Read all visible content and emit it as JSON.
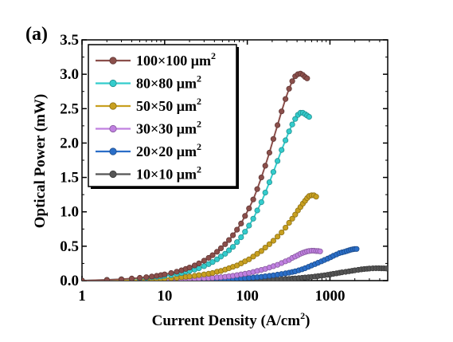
{
  "panel_label": "(a)",
  "chart_data": {
    "type": "scatter",
    "xlabel_main": "Current Density (A/cm",
    "xlabel_sup": "2",
    "xlabel_close": ")",
    "ylabel": "Optical Power (mW)",
    "x_scale": "log",
    "xlim": [
      1,
      5000
    ],
    "ylim": [
      0,
      3.5
    ],
    "x_ticks": [
      1,
      10,
      100,
      1000
    ],
    "x_tick_labels": [
      "1",
      "10",
      "100",
      "1000"
    ],
    "y_ticks": [
      0,
      0.5,
      1.0,
      1.5,
      2.0,
      2.5,
      3.0,
      3.5
    ],
    "y_tick_labels": [
      "0.0",
      "0.5",
      "1.0",
      "1.5",
      "2.0",
      "2.5",
      "3.0",
      "3.5"
    ],
    "grid": false,
    "legend_position": "top-left",
    "series": [
      {
        "name": "100×100 μm",
        "name_sup": "2",
        "color": "#8B4F4B",
        "x": [
          1,
          2,
          3,
          4,
          5,
          6,
          7,
          8,
          9,
          10,
          12,
          14,
          16,
          18,
          20,
          23,
          26,
          30,
          34,
          38,
          43,
          48,
          54,
          60,
          67,
          75,
          84,
          94,
          105,
          118,
          132,
          148,
          165,
          185,
          207,
          232,
          260,
          290,
          320,
          350,
          380,
          410,
          440,
          470,
          500,
          530
        ],
        "y": [
          0.0,
          0.01,
          0.02,
          0.03,
          0.04,
          0.05,
          0.06,
          0.07,
          0.08,
          0.09,
          0.11,
          0.13,
          0.15,
          0.17,
          0.19,
          0.22,
          0.25,
          0.29,
          0.33,
          0.37,
          0.42,
          0.47,
          0.53,
          0.59,
          0.66,
          0.74,
          0.83,
          0.94,
          1.05,
          1.18,
          1.33,
          1.5,
          1.67,
          1.86,
          2.06,
          2.26,
          2.46,
          2.64,
          2.79,
          2.9,
          2.97,
          3.0,
          3.01,
          2.99,
          2.96,
          2.94
        ]
      },
      {
        "name": "80×80 μm",
        "name_sup": "2",
        "color": "#33CCCC",
        "x": [
          1,
          2,
          3,
          4,
          5,
          6,
          7,
          8,
          9,
          10,
          12,
          14,
          16,
          18,
          20,
          23,
          26,
          30,
          34,
          38,
          43,
          48,
          54,
          60,
          67,
          75,
          84,
          94,
          105,
          118,
          132,
          148,
          165,
          185,
          207,
          232,
          260,
          290,
          320,
          350,
          380,
          410,
          440,
          470,
          500,
          530,
          560
        ],
        "y": [
          0.0,
          0.01,
          0.02,
          0.025,
          0.03,
          0.04,
          0.05,
          0.055,
          0.06,
          0.07,
          0.08,
          0.1,
          0.11,
          0.13,
          0.14,
          0.16,
          0.18,
          0.21,
          0.24,
          0.27,
          0.31,
          0.35,
          0.39,
          0.44,
          0.49,
          0.56,
          0.63,
          0.71,
          0.8,
          0.9,
          1.02,
          1.14,
          1.28,
          1.43,
          1.58,
          1.74,
          1.9,
          2.04,
          2.17,
          2.27,
          2.35,
          2.41,
          2.44,
          2.44,
          2.42,
          2.4,
          2.38
        ]
      },
      {
        "name": "50×50 μm",
        "name_sup": "2",
        "color": "#C8A020",
        "x": [
          1,
          2,
          3,
          4,
          5,
          6,
          7,
          8,
          9,
          10,
          12,
          14,
          16,
          18,
          20,
          23,
          26,
          30,
          34,
          38,
          43,
          48,
          54,
          60,
          67,
          75,
          84,
          94,
          105,
          118,
          132,
          148,
          165,
          185,
          207,
          232,
          260,
          290,
          320,
          350,
          380,
          410,
          440,
          470,
          500,
          530,
          560,
          600,
          640,
          680
        ],
        "y": [
          0.0,
          0.0,
          0.005,
          0.01,
          0.01,
          0.015,
          0.02,
          0.02,
          0.025,
          0.03,
          0.035,
          0.04,
          0.05,
          0.055,
          0.06,
          0.07,
          0.08,
          0.09,
          0.1,
          0.11,
          0.13,
          0.14,
          0.16,
          0.18,
          0.2,
          0.22,
          0.25,
          0.28,
          0.31,
          0.35,
          0.39,
          0.43,
          0.48,
          0.53,
          0.58,
          0.64,
          0.7,
          0.77,
          0.84,
          0.9,
          0.96,
          1.02,
          1.07,
          1.12,
          1.16,
          1.2,
          1.23,
          1.24,
          1.24,
          1.22
        ]
      },
      {
        "name": "30×30 μm",
        "name_sup": "2",
        "color": "#C080E0",
        "x": [
          1,
          2,
          3,
          4,
          5,
          6,
          7,
          8,
          9,
          10,
          12,
          14,
          16,
          18,
          20,
          23,
          26,
          30,
          34,
          38,
          43,
          48,
          54,
          60,
          67,
          75,
          84,
          94,
          105,
          118,
          132,
          148,
          165,
          185,
          207,
          232,
          260,
          290,
          320,
          350,
          380,
          410,
          440,
          470,
          500,
          530,
          560,
          600,
          640,
          680,
          720,
          760
        ],
        "y": [
          0.0,
          0.0,
          0.0,
          0.0,
          0.005,
          0.005,
          0.005,
          0.01,
          0.01,
          0.01,
          0.012,
          0.015,
          0.017,
          0.02,
          0.022,
          0.025,
          0.028,
          0.032,
          0.036,
          0.04,
          0.045,
          0.05,
          0.056,
          0.063,
          0.07,
          0.08,
          0.09,
          0.1,
          0.11,
          0.125,
          0.14,
          0.155,
          0.17,
          0.19,
          0.21,
          0.23,
          0.255,
          0.28,
          0.3,
          0.33,
          0.35,
          0.37,
          0.39,
          0.405,
          0.415,
          0.425,
          0.43,
          0.435,
          0.435,
          0.43,
          0.43,
          0.425
        ]
      },
      {
        "name": "20×20 μm",
        "name_sup": "2",
        "color": "#2A6EC8",
        "x": [
          1,
          2,
          3,
          4,
          5,
          6,
          7,
          8,
          9,
          10,
          12,
          14,
          16,
          18,
          20,
          23,
          26,
          30,
          34,
          38,
          43,
          48,
          54,
          60,
          67,
          75,
          84,
          94,
          105,
          118,
          132,
          148,
          165,
          185,
          207,
          232,
          260,
          290,
          320,
          350,
          380,
          420,
          460,
          500,
          550,
          600,
          660,
          720,
          790,
          860,
          940,
          1020,
          1100,
          1200,
          1300,
          1400,
          1500,
          1600,
          1700,
          1800,
          1900,
          2000,
          2100
        ],
        "y": [
          0.0,
          0.0,
          0.0,
          0.0,
          0.0,
          0.0,
          0.0,
          0.0,
          0.0,
          0.0,
          0.003,
          0.004,
          0.005,
          0.006,
          0.007,
          0.008,
          0.009,
          0.01,
          0.012,
          0.014,
          0.016,
          0.018,
          0.02,
          0.022,
          0.025,
          0.028,
          0.031,
          0.035,
          0.039,
          0.044,
          0.05,
          0.056,
          0.063,
          0.07,
          0.078,
          0.087,
          0.096,
          0.105,
          0.115,
          0.125,
          0.135,
          0.15,
          0.165,
          0.18,
          0.2,
          0.22,
          0.24,
          0.26,
          0.28,
          0.3,
          0.32,
          0.34,
          0.36,
          0.38,
          0.4,
          0.41,
          0.42,
          0.43,
          0.44,
          0.45,
          0.455,
          0.46,
          0.46
        ]
      },
      {
        "name": "10×10 μm",
        "name_sup": "2",
        "color": "#555555",
        "x": [
          1,
          2,
          3,
          4,
          5,
          6,
          7,
          8,
          9,
          10,
          12,
          14,
          16,
          18,
          20,
          23,
          26,
          30,
          34,
          38,
          43,
          48,
          54,
          60,
          67,
          75,
          84,
          94,
          105,
          118,
          132,
          148,
          165,
          185,
          207,
          232,
          260,
          290,
          320,
          350,
          380,
          420,
          460,
          500,
          550,
          600,
          660,
          720,
          790,
          860,
          940,
          1020,
          1100,
          1200,
          1300,
          1400,
          1550,
          1700,
          1850,
          2000,
          2200,
          2400,
          2600,
          2800,
          3000,
          3300,
          3600,
          3900,
          4200,
          4500,
          4800
        ],
        "y": [
          0.0,
          0.0,
          0.0,
          0.0,
          0.0,
          0.0,
          0.0,
          0.0,
          0.0,
          0.0,
          0.0,
          0.0,
          0.0,
          0.0,
          0.0,
          0.0,
          0.0,
          0.0,
          0.0,
          0.0,
          0.0,
          0.0,
          0.0,
          0.0,
          0.002,
          0.003,
          0.004,
          0.005,
          0.006,
          0.007,
          0.008,
          0.01,
          0.012,
          0.014,
          0.016,
          0.018,
          0.02,
          0.023,
          0.026,
          0.029,
          0.032,
          0.036,
          0.04,
          0.045,
          0.05,
          0.055,
          0.06,
          0.066,
          0.072,
          0.078,
          0.085,
          0.092,
          0.099,
          0.106,
          0.113,
          0.12,
          0.128,
          0.136,
          0.143,
          0.15,
          0.157,
          0.163,
          0.168,
          0.172,
          0.175,
          0.178,
          0.18,
          0.18,
          0.179,
          0.178,
          0.176
        ]
      }
    ]
  }
}
